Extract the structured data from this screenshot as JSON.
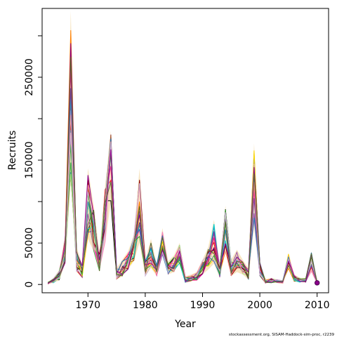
{
  "chart_data": {
    "type": "line",
    "title": "",
    "xlabel": "Year",
    "ylabel": "Recruits",
    "xlim": [
      1962,
      2012
    ],
    "ylim": [
      -10000,
      333000
    ],
    "xticks": [
      1970,
      1980,
      1990,
      2000,
      2010
    ],
    "yticks": [
      0,
      50000,
      150000,
      250000
    ],
    "minor_yticks": [
      100000,
      200000,
      300000
    ],
    "grid": false,
    "legend": "none",
    "credit": "stockassessment.org, SISAM-Haddock-sim-proc, r2239",
    "x": [
      1963,
      1964,
      1965,
      1966,
      1967,
      1968,
      1969,
      1970,
      1971,
      1972,
      1973,
      1974,
      1975,
      1976,
      1977,
      1978,
      1979,
      1980,
      1981,
      1982,
      1983,
      1984,
      1985,
      1986,
      1987,
      1988,
      1989,
      1990,
      1991,
      1992,
      1993,
      1994,
      1995,
      1996,
      1997,
      1998,
      1999,
      2000,
      2001,
      2002,
      2003,
      2004,
      2005,
      2006,
      2007,
      2008,
      2009,
      2010
    ],
    "base_values": [
      1500,
      4000,
      10000,
      40000,
      210000,
      25000,
      15000,
      95000,
      65000,
      22000,
      85000,
      160000,
      12000,
      18000,
      28000,
      45000,
      85000,
      18000,
      35000,
      15000,
      55000,
      18000,
      25000,
      38000,
      5000,
      7000,
      9000,
      22000,
      30000,
      45000,
      15000,
      70000,
      18000,
      28000,
      20000,
      12000,
      120000,
      18000,
      3000,
      4000,
      3500,
      3000,
      30000,
      7000,
      5000,
      4500,
      30000,
      2000
    ],
    "upper_band": [
      3000,
      8000,
      18000,
      60000,
      330000,
      45000,
      25000,
      140000,
      95000,
      40000,
      120000,
      185000,
      20000,
      30000,
      40000,
      60000,
      140000,
      30000,
      55000,
      25000,
      68000,
      28000,
      35000,
      50000,
      10000,
      12000,
      15000,
      30000,
      45000,
      78000,
      25000,
      95000,
      30000,
      42000,
      30000,
      20000,
      170000,
      28000,
      6000,
      8000,
      6000,
      5000,
      38000,
      12000,
      8000,
      8000,
      40000,
      4000
    ],
    "lower_band": [
      500,
      2000,
      5000,
      25000,
      130000,
      15000,
      8000,
      55000,
      40000,
      15000,
      50000,
      100000,
      6000,
      10000,
      18000,
      28000,
      50000,
      10000,
      20000,
      10000,
      35000,
      12000,
      15000,
      25000,
      2500,
      4000,
      5000,
      12000,
      18000,
      25000,
      8000,
      40000,
      10000,
      15000,
      12000,
      6000,
      70000,
      10000,
      1500,
      2000,
      2000,
      1500,
      18000,
      3500,
      2500,
      2500,
      15000,
      500
    ],
    "series_colors": [
      "#000000",
      "#E41A1C",
      "#377EB8",
      "#4DAF4A",
      "#984EA3",
      "#FF7F00",
      "#FFD700",
      "#A65628",
      "#F781BF",
      "#00CED1",
      "#FF1493",
      "#6A3D9A",
      "#B2DF8A",
      "#8B0000",
      "#1F78B4",
      "#33A02C",
      "#FB9A99",
      "#CAB2D6",
      "#8B008B",
      "#556B2F"
    ],
    "num_series": 20,
    "band_color": "#F5DEB3"
  }
}
